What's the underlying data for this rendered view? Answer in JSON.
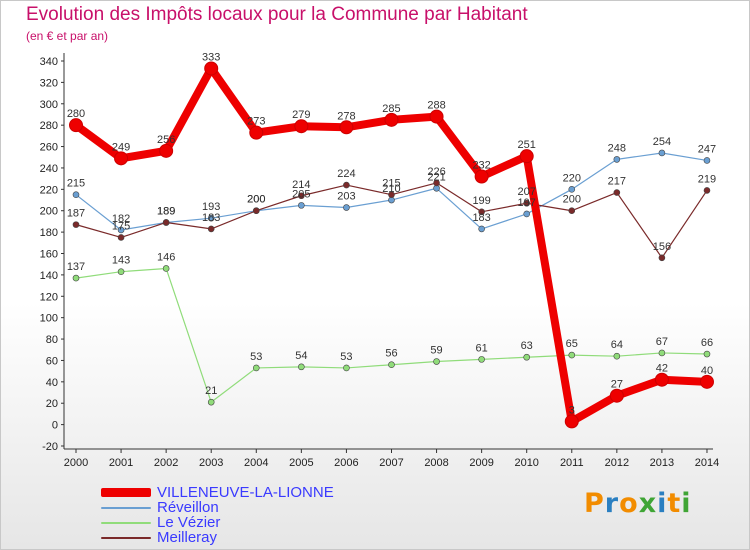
{
  "chart_data": {
    "type": "line",
    "title": "Evolution des Impôts locaux pour la Commune par Habitant",
    "subtitle": "(en € et par an)",
    "x": [
      "2000",
      "2001",
      "2002",
      "2003",
      "2004",
      "2005",
      "2006",
      "2007",
      "2008",
      "2009",
      "2010",
      "2011",
      "2012",
      "2013",
      "2014"
    ],
    "ylim": [
      -20,
      340
    ],
    "yticks": [
      -20,
      0,
      20,
      40,
      60,
      80,
      100,
      120,
      140,
      160,
      180,
      200,
      220,
      240,
      260,
      280,
      300,
      320,
      340
    ],
    "grid": false,
    "legend_position": "bottom-left",
    "series": [
      {
        "name": "VILLENEUVE-LA-LIONNE",
        "color": "#ee0000",
        "width": 8,
        "values": [
          280,
          249,
          256,
          333,
          273,
          279,
          278,
          285,
          288,
          232,
          251,
          3,
          27,
          42,
          40
        ]
      },
      {
        "name": "Réveillon",
        "color": "#6a9fd2",
        "width": 1.2,
        "values": [
          215,
          182,
          189,
          193,
          200,
          205,
          203,
          210,
          221,
          183,
          197,
          220,
          248,
          254,
          247
        ]
      },
      {
        "name": "Le Vézier",
        "color": "#90dc7a",
        "width": 1.2,
        "values": [
          137,
          143,
          146,
          21,
          53,
          54,
          53,
          56,
          59,
          61,
          63,
          65,
          64,
          67,
          66
        ]
      },
      {
        "name": "Meilleray",
        "color": "#7a2a2a",
        "width": 1.2,
        "values": [
          187,
          175,
          189,
          183,
          200,
          214,
          224,
          215,
          226,
          199,
          207,
          200,
          217,
          156,
          219
        ]
      }
    ]
  },
  "logo": {
    "text": "Proxiti",
    "letters": [
      "P",
      "r",
      "o",
      "x",
      "i",
      "t",
      "i"
    ],
    "colors": [
      "#f28c00",
      "#2a7fc1",
      "#f28c00",
      "#3fa535",
      "#2a7fc1",
      "#f28c00",
      "#3fa535"
    ]
  }
}
